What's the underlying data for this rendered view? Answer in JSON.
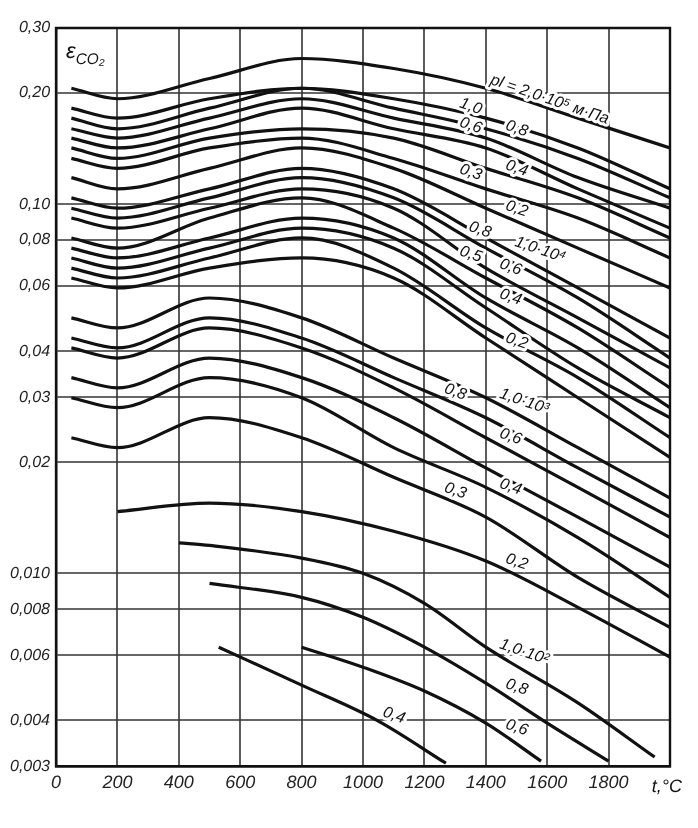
{
  "chart_data": {
    "type": "line",
    "xlabel": "t,°C",
    "ylabel": "ε$_{CO₂}$",
    "log": "y",
    "grid": true,
    "legend": false,
    "marker": "none",
    "xlim": [
      0,
      2000
    ],
    "xticks": [
      0,
      200,
      400,
      600,
      800,
      1000,
      1200,
      1400,
      1600,
      1800
    ],
    "ylim": [
      0.003,
      0.3
    ],
    "yticks": [
      {
        "value": 0.003,
        "label": "0,003"
      },
      {
        "value": 0.004,
        "label": "0,004"
      },
      {
        "value": 0.006,
        "label": "0,006"
      },
      {
        "value": 0.008,
        "label": "0,008"
      },
      {
        "value": 0.01,
        "label": "0,010"
      },
      {
        "value": 0.02,
        "label": "0,02"
      },
      {
        "value": 0.03,
        "label": "0,03"
      },
      {
        "value": 0.04,
        "label": "0,04"
      },
      {
        "value": 0.06,
        "label": "0,06"
      },
      {
        "value": 0.08,
        "label": "0,08"
      },
      {
        "value": 0.1,
        "label": "0,10"
      },
      {
        "value": 0.2,
        "label": "0,20"
      },
      {
        "value": 0.3,
        "label": "0,30"
      }
    ],
    "series": [
      {
        "color": "#111111",
        "x": [
          50,
          200,
          500,
          800,
          1100,
          1400,
          1700,
          2000
        ],
        "values": [
          0.206,
          0.193,
          0.219,
          0.248,
          0.233,
          0.206,
          0.171,
          0.142
        ]
      },
      {
        "color": "#111111",
        "x": [
          50,
          200,
          500,
          800,
          1100,
          1400,
          1700,
          2000
        ],
        "values": [
          0.182,
          0.171,
          0.193,
          0.206,
          0.193,
          0.171,
          0.142,
          0.11
        ]
      },
      {
        "color": "#111111",
        "x": [
          50,
          200,
          500,
          800,
          1100,
          1400,
          1700,
          2000
        ],
        "values": [
          0.171,
          0.16,
          0.182,
          0.206,
          0.182,
          0.16,
          0.133,
          0.104
        ]
      },
      {
        "color": "#111111",
        "x": [
          50,
          200,
          500,
          800,
          1100,
          1400,
          1700,
          2000
        ],
        "values": [
          0.16,
          0.151,
          0.171,
          0.193,
          0.171,
          0.151,
          0.118,
          0.0975
        ]
      },
      {
        "color": "#111111",
        "x": [
          50,
          200,
          500,
          800,
          1100,
          1400,
          1700,
          2000
        ],
        "values": [
          0.151,
          0.142,
          0.16,
          0.182,
          0.16,
          0.142,
          0.11,
          0.0861
        ]
      },
      {
        "color": "#111111",
        "x": [
          50,
          200,
          500,
          800,
          1100,
          1400,
          1700,
          2000
        ],
        "values": [
          0.142,
          0.133,
          0.151,
          0.16,
          0.151,
          0.125,
          0.104,
          0.081
        ]
      },
      {
        "color": "#111111",
        "x": [
          50,
          200,
          500,
          800,
          1100,
          1400,
          1700,
          2000
        ],
        "values": [
          0.133,
          0.125,
          0.142,
          0.151,
          0.133,
          0.11,
          0.0917,
          0.0715
        ]
      },
      {
        "color": "#111111",
        "x": [
          50,
          200,
          500,
          800,
          1100,
          1400,
          1700,
          2000
        ],
        "values": [
          0.118,
          0.11,
          0.125,
          0.142,
          0.125,
          0.0975,
          0.076,
          0.0593
        ]
      },
      {
        "color": "#111111",
        "x": [
          50,
          200,
          500,
          800,
          1100,
          1400,
          1700,
          2000
        ],
        "values": [
          0.104,
          0.0975,
          0.11,
          0.125,
          0.11,
          0.081,
          0.0593,
          0.0434
        ]
      },
      {
        "color": "#111111",
        "x": [
          50,
          200,
          500,
          800,
          1100,
          1400,
          1700,
          2000
        ],
        "values": [
          0.0975,
          0.0917,
          0.104,
          0.118,
          0.104,
          0.076,
          0.0557,
          0.0383
        ]
      },
      {
        "color": "#111111",
        "x": [
          50,
          200,
          500,
          800,
          1100,
          1400,
          1700,
          2000
        ],
        "values": [
          0.0917,
          0.0861,
          0.0975,
          0.11,
          0.0975,
          0.0671,
          0.0492,
          0.036
        ]
      },
      {
        "color": "#111111",
        "x": [
          50,
          200,
          500,
          800,
          1100,
          1400,
          1700,
          2000
        ],
        "values": [
          0.081,
          0.076,
          0.0917,
          0.104,
          0.0861,
          0.0631,
          0.0462,
          0.0318
        ]
      },
      {
        "color": "#111111",
        "x": [
          50,
          200,
          500,
          800,
          1100,
          1400,
          1700,
          2000
        ],
        "values": [
          0.076,
          0.0715,
          0.081,
          0.0917,
          0.081,
          0.0557,
          0.0408,
          0.0281
        ]
      },
      {
        "color": "#111111",
        "x": [
          50,
          200,
          500,
          800,
          1100,
          1400,
          1700,
          2000
        ],
        "values": [
          0.0715,
          0.0671,
          0.076,
          0.0861,
          0.076,
          0.0524,
          0.036,
          0.0264
        ]
      },
      {
        "color": "#111111",
        "x": [
          50,
          200,
          500,
          800,
          1100,
          1400,
          1700,
          2000
        ],
        "values": [
          0.0671,
          0.0631,
          0.0715,
          0.081,
          0.0671,
          0.0462,
          0.0339,
          0.0233
        ]
      },
      {
        "color": "#111111",
        "x": [
          50,
          200,
          500,
          800,
          1100,
          1400,
          1700,
          2000
        ],
        "values": [
          0.0631,
          0.0593,
          0.0671,
          0.0715,
          0.0631,
          0.0434,
          0.0299,
          0.0206
        ]
      },
      {
        "color": "#111111",
        "x": [
          50,
          200,
          500,
          800,
          1100,
          1400,
          1700,
          2000
        ],
        "values": [
          0.0492,
          0.0462,
          0.0557,
          0.0492,
          0.0383,
          0.0299,
          0.0219,
          0.016
        ]
      },
      {
        "color": "#111111",
        "x": [
          50,
          200,
          500,
          800,
          1100,
          1400,
          1700,
          2000
        ],
        "values": [
          0.0434,
          0.0408,
          0.0492,
          0.0434,
          0.0339,
          0.0264,
          0.0193,
          0.0142
        ]
      },
      {
        "color": "#111111",
        "x": [
          50,
          200,
          500,
          800,
          1100,
          1400,
          1700,
          2000
        ],
        "values": [
          0.0408,
          0.0383,
          0.0462,
          0.0408,
          0.0318,
          0.0233,
          0.0171,
          0.0125
        ]
      },
      {
        "color": "#111111",
        "x": [
          50,
          200,
          500,
          800,
          1100,
          1400,
          1700,
          2000
        ],
        "values": [
          0.0339,
          0.0318,
          0.0383,
          0.0339,
          0.0264,
          0.0193,
          0.0142,
          0.0104
        ]
      },
      {
        "color": "#111111",
        "x": [
          50,
          200,
          500,
          800,
          1100,
          1400,
          1700,
          2000
        ],
        "values": [
          0.0299,
          0.0281,
          0.0339,
          0.0299,
          0.0219,
          0.0171,
          0.0125,
          0.00861
        ]
      },
      {
        "color": "#111111",
        "x": [
          50,
          200,
          500,
          800,
          1100,
          1400,
          1700,
          2000
        ],
        "values": [
          0.0233,
          0.0219,
          0.0264,
          0.0233,
          0.0182,
          0.0142,
          0.00975,
          0.00714
        ]
      },
      {
        "color": "#111111",
        "x": [
          200,
          500,
          800,
          1100,
          1400,
          1700,
          2000
        ],
        "values": [
          0.0147,
          0.0155,
          0.0147,
          0.013,
          0.0108,
          0.00809,
          0.00593
        ]
      },
      {
        "color": "#111111",
        "x": [
          400,
          500,
          800,
          1000,
          1200,
          1400,
          1700,
          1950
        ],
        "values": [
          0.0121,
          0.0119,
          0.011,
          0.01,
          0.00829,
          0.00631,
          0.00446,
          0.00318
        ]
      },
      {
        "color": "#111111",
        "x": [
          500,
          800,
          1000,
          1200,
          1400,
          1600,
          1800
        ],
        "values": [
          0.00939,
          0.00861,
          0.0076,
          0.00631,
          0.00504,
          0.00393,
          0.0031
        ]
      },
      {
        "color": "#111111",
        "x": [
          800,
          1000,
          1200,
          1400,
          1580
        ],
        "values": [
          0.00631,
          0.00557,
          0.0048,
          0.00393,
          0.0031
        ]
      },
      {
        "color": "#111111",
        "x": [
          530,
          800,
          1050,
          1270
        ],
        "values": [
          0.00631,
          0.00498,
          0.00398,
          0.00306
        ]
      }
    ],
    "annotations": [
      {
        "text": "pl = 2,0·10⁵ м·Па",
        "x": 1400,
        "y": 0.206
      },
      {
        "text": "1,0",
        "x": 1300,
        "y": 0.178
      },
      {
        "text": "0,8",
        "x": 1450,
        "y": 0.155
      },
      {
        "text": "0,6",
        "x": 1300,
        "y": 0.158
      },
      {
        "text": "0,4",
        "x": 1450,
        "y": 0.121
      },
      {
        "text": "0,3",
        "x": 1300,
        "y": 0.118
      },
      {
        "text": "0,2",
        "x": 1450,
        "y": 0.094
      },
      {
        "text": "1,0·10⁴",
        "x": 1480,
        "y": 0.075
      },
      {
        "text": "0,8",
        "x": 1330,
        "y": 0.0825
      },
      {
        "text": "0,6",
        "x": 1430,
        "y": 0.0653
      },
      {
        "text": "0,5",
        "x": 1300,
        "y": 0.0708
      },
      {
        "text": "0,4",
        "x": 1430,
        "y": 0.0542
      },
      {
        "text": "0,2",
        "x": 1450,
        "y": 0.0412
      },
      {
        "text": "0,8",
        "x": 1250,
        "y": 0.03
      },
      {
        "text": "1,0·10³",
        "x": 1430,
        "y": 0.0291
      },
      {
        "text": "0,6",
        "x": 1430,
        "y": 0.0227
      },
      {
        "text": "0,4",
        "x": 1430,
        "y": 0.0166
      },
      {
        "text": "0,3",
        "x": 1250,
        "y": 0.0162
      },
      {
        "text": "0,2",
        "x": 1450,
        "y": 0.0104
      },
      {
        "text": "1,0·10²",
        "x": 1430,
        "y": 0.0061
      },
      {
        "text": "0,8",
        "x": 1450,
        "y": 0.00476
      },
      {
        "text": "0,6",
        "x": 1450,
        "y": 0.0037
      },
      {
        "text": "0,4",
        "x": 1050,
        "y": 0.00399
      }
    ]
  }
}
